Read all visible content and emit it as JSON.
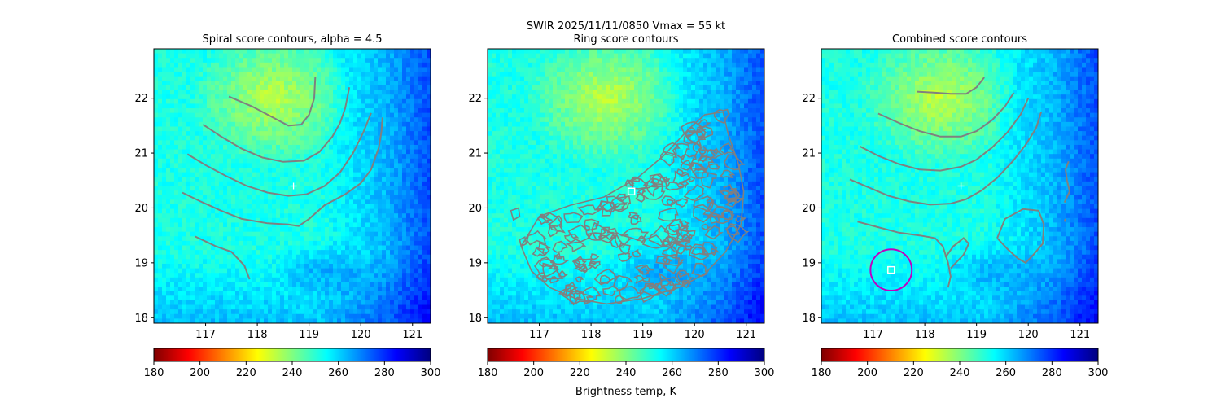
{
  "suptitle": "SWIR  2025/11/11/0850    Vmax = 55 kt",
  "colorbar_label": "Brightness temp, K",
  "colormap": {
    "name": "jet_r",
    "min": 180,
    "max": 300,
    "ticks": [
      "180",
      "200",
      "220",
      "240",
      "260",
      "280",
      "300"
    ],
    "stops": [
      "#7f0000",
      "#ff0000",
      "#ff8000",
      "#ffff00",
      "#80ff80",
      "#00ffff",
      "#0080ff",
      "#0000ff",
      "#00007f"
    ]
  },
  "contour_color": "#808080",
  "marker_color": "#ffffff",
  "circle_color": "#c000c0",
  "chart_data": [
    {
      "type": "heatmap",
      "title": "Spiral score contours, alpha =  4.5",
      "xlim": [
        116.0,
        121.35
      ],
      "ylim": [
        17.9,
        22.9
      ],
      "xticks": [
        "117",
        "118",
        "119",
        "120",
        "121"
      ],
      "yticks": [
        "18",
        "19",
        "20",
        "21",
        "22"
      ],
      "center_plus": [
        118.7,
        20.4
      ],
      "contours": [
        [
          [
            117.45,
            22.03
          ],
          [
            117.9,
            21.85
          ],
          [
            118.3,
            21.65
          ],
          [
            118.6,
            21.5
          ],
          [
            118.85,
            21.52
          ],
          [
            119.0,
            21.7
          ],
          [
            119.1,
            22.0
          ],
          [
            119.12,
            22.38
          ]
        ],
        [
          [
            116.95,
            21.52
          ],
          [
            117.3,
            21.3
          ],
          [
            117.7,
            21.08
          ],
          [
            118.1,
            20.92
          ],
          [
            118.5,
            20.84
          ],
          [
            118.9,
            20.86
          ],
          [
            119.2,
            21.02
          ],
          [
            119.45,
            21.3
          ],
          [
            119.6,
            21.55
          ],
          [
            119.7,
            21.82
          ],
          [
            119.78,
            22.2
          ]
        ],
        [
          [
            116.65,
            20.98
          ],
          [
            117.0,
            20.78
          ],
          [
            117.4,
            20.58
          ],
          [
            117.8,
            20.4
          ],
          [
            118.2,
            20.28
          ],
          [
            118.6,
            20.22
          ],
          [
            118.95,
            20.25
          ],
          [
            119.3,
            20.4
          ],
          [
            119.6,
            20.65
          ],
          [
            119.85,
            21.0
          ],
          [
            120.05,
            21.38
          ],
          [
            120.2,
            21.73
          ]
        ],
        [
          [
            116.55,
            20.28
          ],
          [
            116.9,
            20.12
          ],
          [
            117.3,
            19.95
          ],
          [
            117.7,
            19.8
          ],
          [
            118.2,
            19.72
          ],
          [
            118.6,
            19.7
          ],
          [
            118.8,
            19.67
          ],
          [
            119.0,
            19.8
          ],
          [
            119.3,
            20.05
          ],
          [
            119.7,
            20.25
          ],
          [
            120.0,
            20.45
          ],
          [
            120.2,
            20.7
          ],
          [
            120.35,
            21.1
          ],
          [
            120.4,
            21.4
          ],
          [
            120.42,
            21.65
          ]
        ],
        [
          [
            116.8,
            19.48
          ],
          [
            117.2,
            19.3
          ],
          [
            117.5,
            19.2
          ],
          [
            117.75,
            18.95
          ],
          [
            117.85,
            18.7
          ]
        ]
      ]
    },
    {
      "type": "heatmap",
      "title": "Ring score contours",
      "xlim": [
        116.0,
        121.35
      ],
      "ylim": [
        17.9,
        22.9
      ],
      "xticks": [
        "117",
        "118",
        "119",
        "120",
        "121"
      ],
      "yticks": [
        "18",
        "19",
        "20",
        "21",
        "22"
      ],
      "center_square": [
        118.78,
        20.3
      ],
      "ring_region": [
        [
          116.65,
          19.3
        ],
        [
          117.0,
          19.85
        ],
        [
          117.6,
          20.05
        ],
        [
          118.25,
          20.2
        ],
        [
          118.9,
          20.55
        ],
        [
          119.4,
          20.95
        ],
        [
          119.9,
          21.45
        ],
        [
          120.2,
          21.7
        ],
        [
          120.55,
          21.75
        ],
        [
          120.65,
          21.35
        ],
        [
          120.85,
          20.8
        ],
        [
          120.95,
          20.3
        ],
        [
          120.9,
          19.7
        ],
        [
          120.6,
          19.2
        ],
        [
          120.2,
          18.8
        ],
        [
          119.7,
          18.55
        ],
        [
          119.0,
          18.35
        ],
        [
          118.3,
          18.25
        ],
        [
          117.7,
          18.35
        ],
        [
          117.2,
          18.55
        ],
        [
          116.85,
          18.85
        ]
      ],
      "ring_lobes": [
        [
          [
            116.45,
            19.95
          ],
          [
            116.6,
            20.0
          ],
          [
            116.62,
            19.85
          ],
          [
            116.5,
            19.78
          ]
        ],
        [
          [
            116.62,
            19.42
          ],
          [
            116.72,
            19.47
          ],
          [
            116.75,
            19.35
          ],
          [
            116.65,
            19.3
          ]
        ]
      ]
    },
    {
      "type": "heatmap",
      "title": "Combined score contours",
      "xlim": [
        116.0,
        121.35
      ],
      "ylim": [
        17.9,
        22.9
      ],
      "xticks": [
        "117",
        "118",
        "119",
        "120",
        "121"
      ],
      "yticks": [
        "18",
        "19",
        "20",
        "21",
        "22"
      ],
      "center_plus": [
        118.7,
        20.4
      ],
      "best_square": [
        117.35,
        18.87
      ],
      "best_circle_radius_deg": 0.4,
      "contours": [
        [
          [
            117.85,
            22.12
          ],
          [
            118.2,
            22.1
          ],
          [
            118.5,
            22.08
          ],
          [
            118.8,
            22.08
          ],
          [
            119.0,
            22.2
          ],
          [
            119.15,
            22.38
          ]
        ],
        [
          [
            117.1,
            21.72
          ],
          [
            117.5,
            21.55
          ],
          [
            117.9,
            21.4
          ],
          [
            118.3,
            21.3
          ],
          [
            118.7,
            21.3
          ],
          [
            119.0,
            21.4
          ],
          [
            119.3,
            21.6
          ],
          [
            119.55,
            21.85
          ],
          [
            119.72,
            22.1
          ]
        ],
        [
          [
            116.75,
            21.12
          ],
          [
            117.1,
            20.95
          ],
          [
            117.5,
            20.8
          ],
          [
            117.9,
            20.7
          ],
          [
            118.3,
            20.68
          ],
          [
            118.7,
            20.75
          ],
          [
            119.0,
            20.88
          ],
          [
            119.3,
            21.1
          ],
          [
            119.6,
            21.38
          ],
          [
            119.85,
            21.7
          ],
          [
            120.0,
            22.0
          ]
        ],
        [
          [
            116.55,
            20.52
          ],
          [
            116.9,
            20.38
          ],
          [
            117.3,
            20.22
          ],
          [
            117.7,
            20.12
          ],
          [
            118.1,
            20.06
          ],
          [
            118.5,
            20.08
          ],
          [
            118.8,
            20.16
          ],
          [
            119.1,
            20.32
          ],
          [
            119.4,
            20.55
          ],
          [
            119.7,
            20.85
          ],
          [
            119.95,
            21.15
          ],
          [
            120.15,
            21.45
          ],
          [
            120.25,
            21.75
          ]
        ],
        [
          [
            116.7,
            19.75
          ],
          [
            117.1,
            19.65
          ],
          [
            117.5,
            19.55
          ],
          [
            117.9,
            19.5
          ],
          [
            118.2,
            19.45
          ],
          [
            118.35,
            19.3
          ],
          [
            118.45,
            19.0
          ],
          [
            118.5,
            18.75
          ],
          [
            118.45,
            18.55
          ]
        ],
        [
          [
            118.4,
            19.1
          ],
          [
            118.55,
            19.3
          ],
          [
            118.75,
            19.45
          ],
          [
            118.85,
            19.35
          ],
          [
            118.75,
            19.15
          ],
          [
            118.6,
            19.0
          ],
          [
            118.5,
            18.9
          ]
        ],
        [
          [
            119.4,
            19.45
          ],
          [
            119.55,
            19.8
          ],
          [
            119.9,
            19.98
          ],
          [
            120.2,
            19.95
          ],
          [
            120.3,
            19.7
          ],
          [
            120.28,
            19.35
          ],
          [
            120.1,
            19.15
          ],
          [
            119.95,
            19.0
          ],
          [
            119.8,
            19.08
          ],
          [
            119.6,
            19.25
          ],
          [
            119.4,
            19.45
          ]
        ],
        [
          [
            120.7,
            20.1
          ],
          [
            120.8,
            20.3
          ],
          [
            120.75,
            20.5
          ],
          [
            120.72,
            20.7
          ],
          [
            120.78,
            20.85
          ]
        ],
        [
          [
            120.7,
            19.75
          ],
          [
            120.72,
            19.8
          ]
        ]
      ]
    }
  ]
}
